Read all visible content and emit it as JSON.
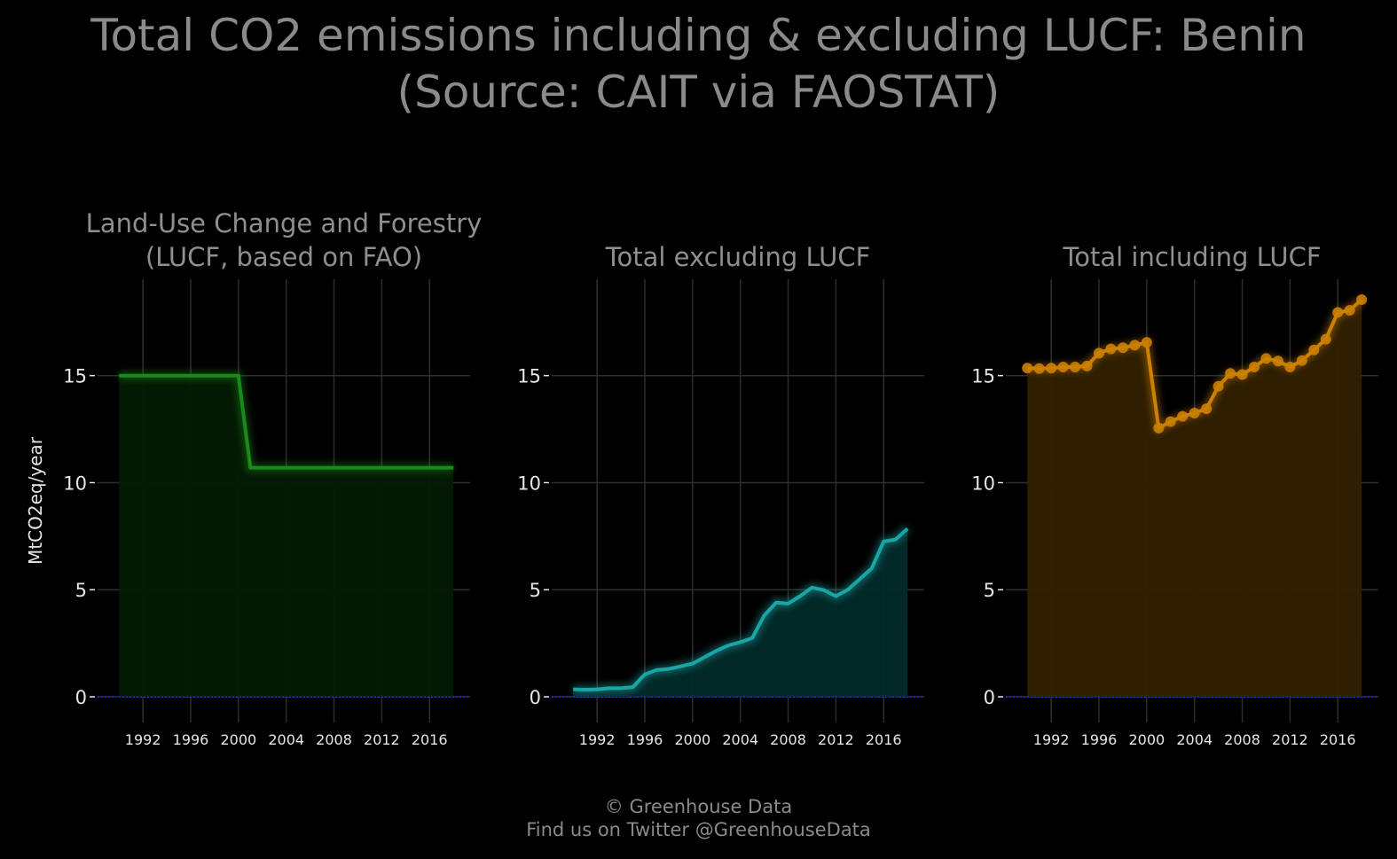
{
  "title": {
    "line1": "Total CO2 emissions including & excluding LUCF: Benin",
    "line2": "(Source: CAIT via FAOSTAT)"
  },
  "credits": {
    "line1": "© Greenhouse Data",
    "line2": "Find us on Twitter @GreenhouseData"
  },
  "colors": {
    "background": "#000000",
    "grid": "#2e2e2e",
    "text": "#e6e6e6",
    "title_text": "#8a8a8a",
    "baseline": "#2020c0"
  },
  "chart_data": [
    {
      "type": "area",
      "title_lines": [
        "Land-Use Change and Forestry",
        "(LUCF, based on FAO)"
      ],
      "ylabel": "MtCO2eq/year",
      "color": "#1a8a1a",
      "fill": "#031a03",
      "markers": false,
      "x": [
        1990,
        1991,
        1992,
        1993,
        1994,
        1995,
        1996,
        1997,
        1998,
        1999,
        2000,
        2001,
        2002,
        2003,
        2004,
        2005,
        2006,
        2007,
        2008,
        2009,
        2010,
        2011,
        2012,
        2013,
        2014,
        2015,
        2016,
        2017,
        2018
      ],
      "values": [
        15.0,
        15.0,
        15.0,
        15.0,
        15.0,
        15.0,
        15.0,
        15.0,
        15.0,
        15.0,
        15.0,
        10.7,
        10.7,
        10.7,
        10.7,
        10.7,
        10.7,
        10.7,
        10.7,
        10.7,
        10.7,
        10.7,
        10.7,
        10.7,
        10.7,
        10.7,
        10.7,
        10.7,
        10.7
      ],
      "xlim": [
        1988.2,
        2019.4
      ],
      "ylim": [
        -1.2,
        19.5
      ],
      "x_ticks": [
        "1992",
        "1996",
        "2000",
        "2004",
        "2008",
        "2012",
        "2016"
      ],
      "y_ticks": [
        "0",
        "5",
        "10",
        "15"
      ],
      "grid": true
    },
    {
      "type": "area",
      "title_lines": [
        "Total excluding LUCF"
      ],
      "ylabel": "",
      "color": "#1aa6a6",
      "fill": "#032a2a",
      "markers": false,
      "x": [
        1990,
        1991,
        1992,
        1993,
        1994,
        1995,
        1996,
        1997,
        1998,
        1999,
        2000,
        2001,
        2002,
        2003,
        2004,
        2005,
        2006,
        2007,
        2008,
        2009,
        2010,
        2011,
        2012,
        2013,
        2014,
        2015,
        2016,
        2017,
        2018
      ],
      "values": [
        0.35,
        0.33,
        0.35,
        0.4,
        0.4,
        0.45,
        1.05,
        1.25,
        1.3,
        1.42,
        1.55,
        1.85,
        2.15,
        2.4,
        2.55,
        2.75,
        3.8,
        4.4,
        4.35,
        4.7,
        5.1,
        4.98,
        4.7,
        5.0,
        5.5,
        6.0,
        7.25,
        7.35,
        7.85
      ],
      "xlim": [
        1988.2,
        2019.4
      ],
      "ylim": [
        -1.2,
        19.5
      ],
      "x_ticks": [
        "1992",
        "1996",
        "2000",
        "2004",
        "2008",
        "2012",
        "2016"
      ],
      "y_ticks": [
        "0",
        "5",
        "10",
        "15"
      ],
      "grid": true
    },
    {
      "type": "area",
      "title_lines": [
        "Total including LUCF"
      ],
      "ylabel": "",
      "color": "#cc8000",
      "fill": "#322000",
      "markers": true,
      "x": [
        1990,
        1991,
        1992,
        1993,
        1994,
        1995,
        1996,
        1997,
        1998,
        1999,
        2000,
        2001,
        2002,
        2003,
        2004,
        2005,
        2006,
        2007,
        2008,
        2009,
        2010,
        2011,
        2012,
        2013,
        2014,
        2015,
        2016,
        2017,
        2018
      ],
      "values": [
        15.35,
        15.33,
        15.35,
        15.4,
        15.4,
        15.45,
        16.05,
        16.25,
        16.3,
        16.42,
        16.55,
        12.55,
        12.85,
        13.1,
        13.25,
        13.45,
        14.5,
        15.1,
        15.05,
        15.4,
        15.8,
        15.68,
        15.4,
        15.7,
        16.2,
        16.7,
        17.95,
        18.05,
        18.55
      ],
      "xlim": [
        1988.2,
        2019.4
      ],
      "ylim": [
        -1.2,
        19.5
      ],
      "x_ticks": [
        "1992",
        "1996",
        "2000",
        "2004",
        "2008",
        "2012",
        "2016"
      ],
      "y_ticks": [
        "0",
        "5",
        "10",
        "15"
      ],
      "grid": true
    }
  ]
}
